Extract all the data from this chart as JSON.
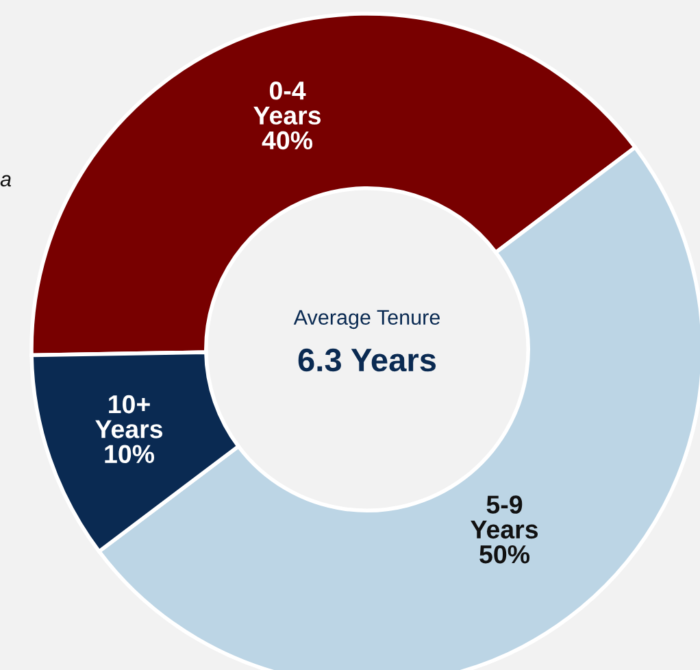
{
  "chart_data": {
    "type": "donut",
    "categories": [
      "0-4 Years",
      "5-9 Years",
      "10+ Years"
    ],
    "values": [
      40,
      50,
      10
    ],
    "colors": [
      "#780000",
      "#bcd5e5",
      "#0a2a52"
    ],
    "value_labels": [
      "40%",
      "50%",
      "10%"
    ],
    "annotations": [
      "Average Tenure",
      "6.3 Years",
      "a"
    ]
  }
}
